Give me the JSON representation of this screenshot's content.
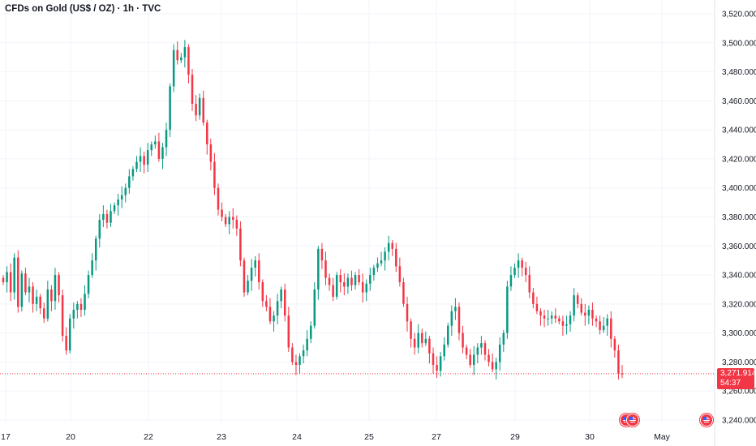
{
  "header": {
    "title": "CFDs on Gold (US$ / OZ) · 1h · TVC"
  },
  "price_label": {
    "price": "3,271.914",
    "countdown": "54:37"
  },
  "colors": {
    "up": "#089981",
    "down": "#f23645",
    "last_price_line": "#f23645",
    "grid": "#f0f3fa",
    "text": "#131722"
  },
  "icons": {
    "event": "us-flag-icon"
  },
  "chart_data": {
    "type": "candlestick",
    "title": "CFDs on Gold (US$ / OZ) · 1h · TVC",
    "xlabel": "",
    "ylabel": "",
    "ylim": [
      3230,
      3525
    ],
    "y_ticks": [
      3240,
      3260,
      3280,
      3300,
      3320,
      3340,
      3360,
      3380,
      3400,
      3420,
      3440,
      3460,
      3480,
      3500,
      3520
    ],
    "y_tick_labels": [
      "3,240.000",
      "3,260.000",
      "3,280.000",
      "3,300.000",
      "3,320.000",
      "3,340.000",
      "3,360.000",
      "3,380.000",
      "3,400.000",
      "3,420.000",
      "3,440.000",
      "3,460.000",
      "3,480.000",
      "3,500.000",
      "3,520.000"
    ],
    "x_tick_labels": [
      "17",
      "20",
      "22",
      "23",
      "24",
      "25",
      "27",
      "29",
      "30",
      "May"
    ],
    "last_price": 3271.914,
    "grid": true,
    "legend": "none",
    "series": [
      {
        "values": [
          3335,
          3342,
          3328,
          3352,
          3318,
          3341,
          3328,
          3332,
          3320,
          3325,
          3317,
          3310,
          3330,
          3322,
          3340,
          3326,
          3298,
          3288,
          3310,
          3316,
          3320,
          3316,
          3327,
          3340,
          3350,
          3365,
          3378,
          3382,
          3376,
          3384,
          3388,
          3392,
          3395,
          3400,
          3408,
          3413,
          3418,
          3422,
          3416,
          3426,
          3430,
          3432,
          3420,
          3428,
          3440,
          3470,
          3495,
          3488,
          3490,
          3497,
          3478,
          3458,
          3450,
          3462,
          3445,
          3430,
          3418,
          3400,
          3385,
          3380,
          3375,
          3380,
          3378,
          3372,
          3350,
          3328,
          3336,
          3345,
          3350,
          3335,
          3322,
          3318,
          3308,
          3312,
          3322,
          3330,
          3312,
          3290,
          3280,
          3278,
          3284,
          3288,
          3296,
          3305,
          3330,
          3358,
          3350,
          3338,
          3333,
          3325,
          3340,
          3335,
          3332,
          3338,
          3333,
          3340,
          3335,
          3328,
          3334,
          3340,
          3345,
          3348,
          3350,
          3356,
          3362,
          3358,
          3346,
          3335,
          3320,
          3308,
          3296,
          3290,
          3300,
          3293,
          3296,
          3286,
          3278,
          3274,
          3284,
          3292,
          3305,
          3315,
          3318,
          3300,
          3290,
          3285,
          3278,
          3285,
          3290,
          3293,
          3285,
          3280,
          3275,
          3280,
          3292,
          3300,
          3332,
          3340,
          3345,
          3350,
          3345,
          3340,
          3328,
          3320,
          3315,
          3312,
          3310,
          3310,
          3312,
          3310,
          3308,
          3305,
          3306,
          3312,
          3326,
          3320,
          3314,
          3312,
          3316,
          3310,
          3308,
          3302,
          3305,
          3310,
          3296,
          3288,
          3272,
          3271.9
        ]
      }
    ]
  }
}
